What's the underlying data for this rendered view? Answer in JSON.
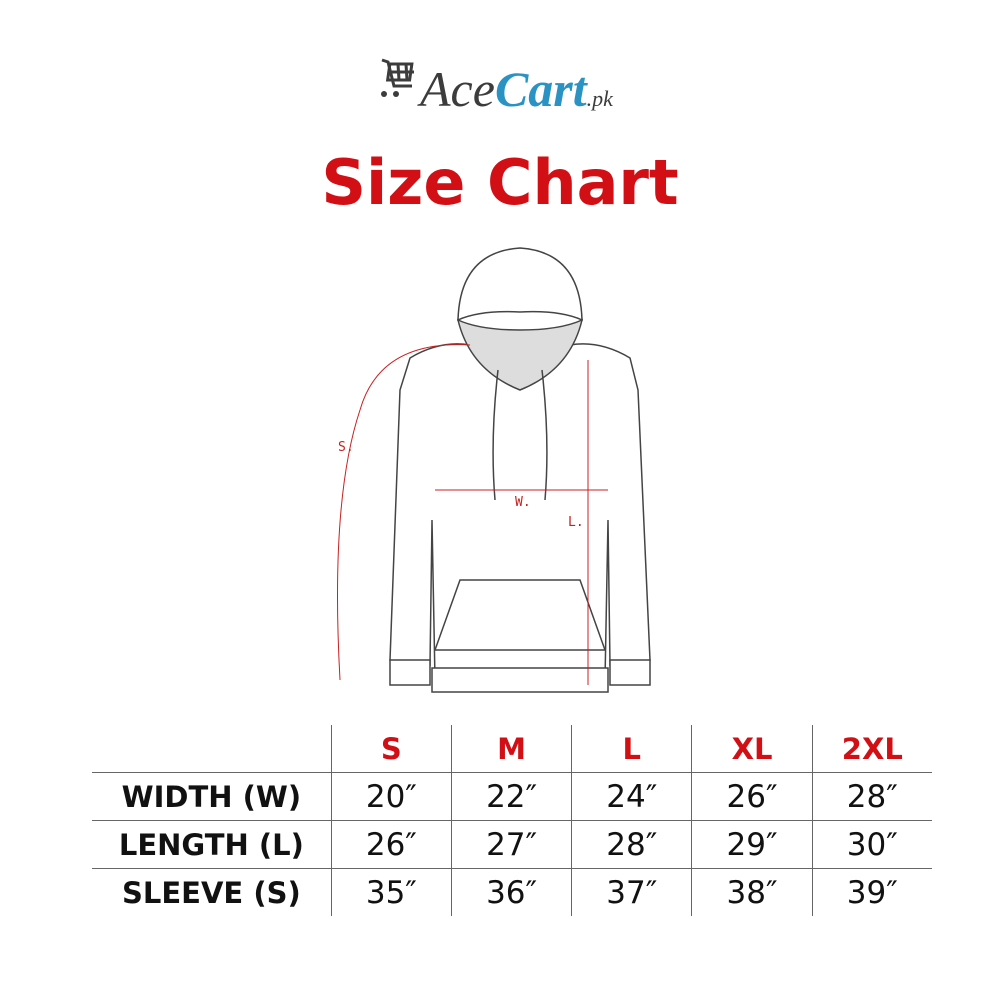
{
  "logo": {
    "text_dark": "Ace",
    "text_blue": "Cart",
    "suffix": ".pk",
    "icon": "shopping-cart-icon",
    "colors": {
      "dark": "#3c3c3c",
      "blue": "#2a93c3"
    }
  },
  "title": "Size Chart",
  "title_color": "#d20f14",
  "diagram": {
    "labels": {
      "sleeve": "S.",
      "width": "W.",
      "length": "L."
    }
  },
  "size_table": {
    "sizes": [
      "S",
      "M",
      "L",
      "XL",
      "2XL"
    ],
    "rows": [
      {
        "label": "WIDTH (W)",
        "values": [
          "20″",
          "22″",
          "24″",
          "26″",
          "28″"
        ]
      },
      {
        "label": "LENGTH (L)",
        "values": [
          "26″",
          "27″",
          "28″",
          "29″",
          "30″"
        ]
      },
      {
        "label": "SLEEVE (S)",
        "values": [
          "35″",
          "36″",
          "37″",
          "38″",
          "39″"
        ]
      }
    ]
  }
}
